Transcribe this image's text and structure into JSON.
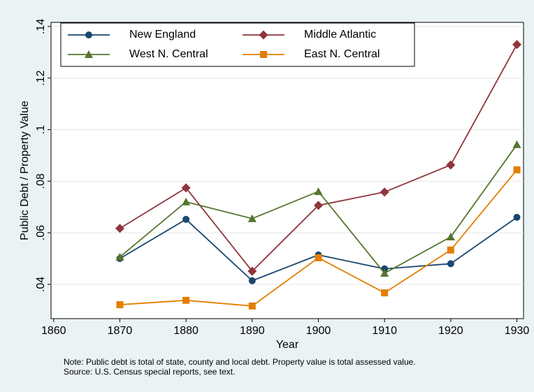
{
  "chart_data": {
    "type": "line",
    "x_label": "Year",
    "y_label": "Public Debt / Property Value",
    "notes": [
      "Note: Public debt is total of state, county and local debt. Property value is total assessed value.",
      "Source: U.S. Census special reports, see text."
    ],
    "x": [
      1870,
      1880,
      1890,
      1900,
      1910,
      1920,
      1930
    ],
    "xlim": [
      1859.6,
      1931.0
    ],
    "xticks": [
      1860,
      1870,
      1880,
      1890,
      1900,
      1910,
      1920,
      1930
    ],
    "ylim": [
      0.0267,
      0.1416
    ],
    "yticks": [
      {
        "value": 0.04,
        "label": ".04"
      },
      {
        "value": 0.06,
        "label": ".06"
      },
      {
        "value": 0.08,
        "label": ".08"
      },
      {
        "value": 0.1,
        "label": ".1"
      },
      {
        "value": 0.12,
        "label": ".12"
      },
      {
        "value": 0.14,
        "label": ".14"
      }
    ],
    "grid": true,
    "legend": "top-left",
    "series": [
      {
        "name": "New England",
        "color": "#1a476f",
        "marker": "circle",
        "values": [
          0.05,
          0.0652,
          0.0414,
          0.0514,
          0.046,
          0.048,
          0.066
        ]
      },
      {
        "name": "Middle Atlantic",
        "color": "#90353b",
        "marker": "diamond",
        "values": [
          0.0617,
          0.0774,
          0.0451,
          0.0706,
          0.0758,
          0.0863,
          0.133
        ]
      },
      {
        "name": "West N. Central",
        "color": "#55752f",
        "marker": "triangle",
        "values": [
          0.0506,
          0.072,
          0.0655,
          0.076,
          0.0443,
          0.0584,
          0.0942
        ]
      },
      {
        "name": "East N. Central",
        "color": "#e37e00",
        "marker": "square",
        "values": [
          0.0321,
          0.0338,
          0.0316,
          0.0503,
          0.0367,
          0.0533,
          0.0844
        ]
      }
    ]
  }
}
